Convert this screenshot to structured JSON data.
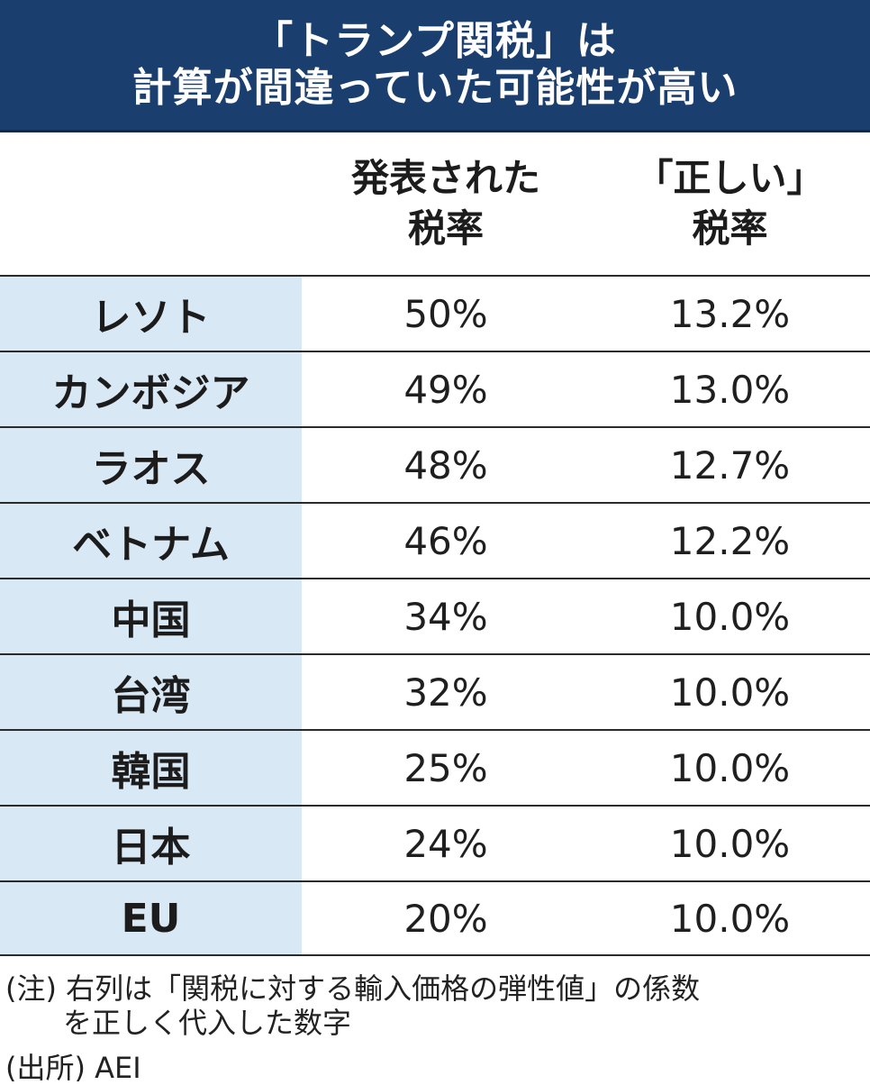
{
  "title": {
    "line1": "「トランプ関税」は",
    "line2": "計算が間違っていた可能性が高い"
  },
  "header": {
    "published_line1": "発表された",
    "published_line2": "税率",
    "correct_line1": "「正しい」",
    "correct_line2": "税率"
  },
  "chart_data": {
    "type": "table",
    "columns": [
      "",
      "発表された税率",
      "「正しい」税率"
    ],
    "rows": [
      {
        "country": "レソト",
        "published": "50%",
        "correct": "13.2%"
      },
      {
        "country": "カンボジア",
        "published": "49%",
        "correct": "13.0%"
      },
      {
        "country": "ラオス",
        "published": "48%",
        "correct": "12.7%"
      },
      {
        "country": "ベトナム",
        "published": "46%",
        "correct": "12.2%"
      },
      {
        "country": "中国",
        "published": "34%",
        "correct": "10.0%"
      },
      {
        "country": "台湾",
        "published": "32%",
        "correct": "10.0%"
      },
      {
        "country": "韓国",
        "published": "25%",
        "correct": "10.0%"
      },
      {
        "country": "日本",
        "published": "24%",
        "correct": "10.0%"
      },
      {
        "country": "EU",
        "published": "20%",
        "correct": "10.0%"
      }
    ]
  },
  "note": {
    "line1": "(注) 右列は「関税に対する輸入価格の弾性値」の係数",
    "line2": "を正しく代入した数字"
  },
  "source": "(出所) AEI",
  "colors": {
    "title_bg": "#1a3f6f",
    "country_bg": "#d9e8f5"
  }
}
